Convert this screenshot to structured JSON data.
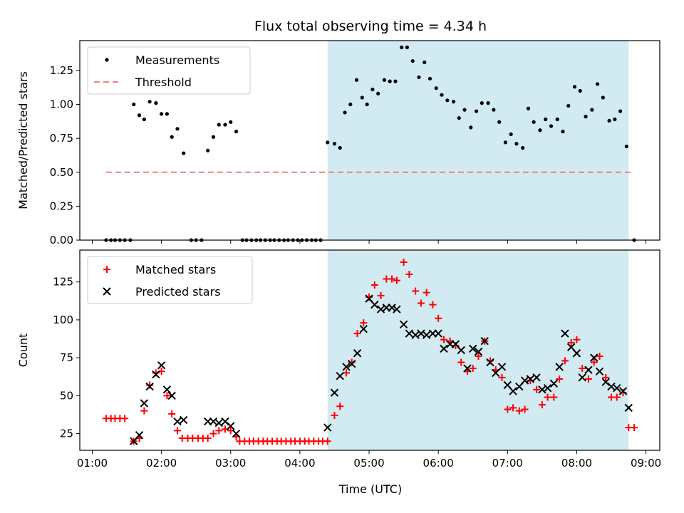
{
  "title": "Flux total observing time = 4.34 h",
  "xlabel": "Time (UTC)",
  "x_ticks": [
    "01:00",
    "02:00",
    "03:00",
    "04:00",
    "05:00",
    "06:00",
    "07:00",
    "08:00",
    "09:00"
  ],
  "x_tick_hours": [
    1,
    2,
    3,
    4,
    5,
    6,
    7,
    8,
    9
  ],
  "xlim_hours": [
    0.82,
    9.2
  ],
  "shaded_span_hours": [
    4.4,
    8.75
  ],
  "shade_color": "#d2eaf1",
  "chart_data": [
    {
      "type": "scatter",
      "ylabel": "Matched/Predicted stars",
      "ylim": [
        0,
        1.47
      ],
      "y_ticks": [
        0.0,
        0.25,
        0.5,
        0.75,
        1.0,
        1.25
      ],
      "y_tick_labels": [
        "0.00",
        "0.25",
        "0.50",
        "0.75",
        "1.00",
        "1.25"
      ],
      "legend_position": "upper-left",
      "series": [
        {
          "name": "Measurements",
          "marker": "dot",
          "color": "#000000",
          "points": [
            [
              1.2,
              0
            ],
            [
              1.27,
              0
            ],
            [
              1.33,
              0
            ],
            [
              1.4,
              0
            ],
            [
              1.47,
              0
            ],
            [
              1.55,
              0
            ],
            [
              1.6,
              1.0
            ],
            [
              1.68,
              0.92
            ],
            [
              1.75,
              0.89
            ],
            [
              1.83,
              1.02
            ],
            [
              1.92,
              1.01
            ],
            [
              2.0,
              0.93
            ],
            [
              2.08,
              0.93
            ],
            [
              2.15,
              0.76
            ],
            [
              2.23,
              0.82
            ],
            [
              2.32,
              0.64
            ],
            [
              2.43,
              0
            ],
            [
              2.5,
              0
            ],
            [
              2.58,
              0
            ],
            [
              2.67,
              0.66
            ],
            [
              2.75,
              0.76
            ],
            [
              2.83,
              0.85
            ],
            [
              2.92,
              0.85
            ],
            [
              3.0,
              0.87
            ],
            [
              3.08,
              0.8
            ],
            [
              3.17,
              0
            ],
            [
              3.23,
              0
            ],
            [
              3.3,
              0
            ],
            [
              3.37,
              0
            ],
            [
              3.43,
              0
            ],
            [
              3.5,
              0
            ],
            [
              3.57,
              0
            ],
            [
              3.63,
              0
            ],
            [
              3.7,
              0
            ],
            [
              3.77,
              0
            ],
            [
              3.83,
              0
            ],
            [
              3.9,
              0
            ],
            [
              3.97,
              0
            ],
            [
              4.03,
              0
            ],
            [
              4.1,
              0
            ],
            [
              4.17,
              0
            ],
            [
              4.23,
              0
            ],
            [
              4.3,
              0
            ],
            [
              4.4,
              0.72
            ],
            [
              4.5,
              0.71
            ],
            [
              4.58,
              0.68
            ],
            [
              4.65,
              0.94
            ],
            [
              4.73,
              1.0
            ],
            [
              4.82,
              1.18
            ],
            [
              4.9,
              1.05
            ],
            [
              4.97,
              1.0
            ],
            [
              5.05,
              1.11
            ],
            [
              5.13,
              1.08
            ],
            [
              5.22,
              1.18
            ],
            [
              5.3,
              1.17
            ],
            [
              5.38,
              1.17
            ],
            [
              5.47,
              1.42
            ],
            [
              5.55,
              1.42
            ],
            [
              5.63,
              1.32
            ],
            [
              5.72,
              1.2
            ],
            [
              5.8,
              1.31
            ],
            [
              5.88,
              1.19
            ],
            [
              5.97,
              1.12
            ],
            [
              6.05,
              1.07
            ],
            [
              6.13,
              1.03
            ],
            [
              6.22,
              1.02
            ],
            [
              6.3,
              0.9
            ],
            [
              6.38,
              0.96
            ],
            [
              6.47,
              0.83
            ],
            [
              6.55,
              0.95
            ],
            [
              6.63,
              1.01
            ],
            [
              6.72,
              1.01
            ],
            [
              6.8,
              0.96
            ],
            [
              6.88,
              0.87
            ],
            [
              6.97,
              0.72
            ],
            [
              7.05,
              0.78
            ],
            [
              7.13,
              0.71
            ],
            [
              7.22,
              0.68
            ],
            [
              7.3,
              0.97
            ],
            [
              7.38,
              0.87
            ],
            [
              7.47,
              0.81
            ],
            [
              7.55,
              0.89
            ],
            [
              7.63,
              0.84
            ],
            [
              7.72,
              0.89
            ],
            [
              7.8,
              0.8
            ],
            [
              7.88,
              0.99
            ],
            [
              7.97,
              1.13
            ],
            [
              8.05,
              1.1
            ],
            [
              8.13,
              0.91
            ],
            [
              8.22,
              0.96
            ],
            [
              8.3,
              1.15
            ],
            [
              8.38,
              1.05
            ],
            [
              8.47,
              0.88
            ],
            [
              8.55,
              0.89
            ],
            [
              8.63,
              0.95
            ],
            [
              8.72,
              0.69
            ],
            [
              8.83,
              0
            ]
          ]
        },
        {
          "name": "Threshold",
          "marker": "dashed-line",
          "color": "#f08080",
          "points": [
            [
              1.2,
              0.5
            ],
            [
              8.83,
              0.5
            ]
          ]
        }
      ]
    },
    {
      "type": "scatter",
      "ylabel": "Count",
      "ylim": [
        14,
        146
      ],
      "y_ticks": [
        25,
        50,
        75,
        100,
        125
      ],
      "y_tick_labels": [
        "25",
        "50",
        "75",
        "100",
        "125"
      ],
      "legend_position": "upper-left",
      "series": [
        {
          "name": "Matched stars",
          "marker": "plus",
          "color": "#ff0000",
          "points": [
            [
              1.2,
              35
            ],
            [
              1.27,
              35
            ],
            [
              1.33,
              35
            ],
            [
              1.4,
              35
            ],
            [
              1.47,
              35
            ],
            [
              1.6,
              20
            ],
            [
              1.68,
              22
            ],
            [
              1.75,
              40
            ],
            [
              1.83,
              57
            ],
            [
              1.92,
              65
            ],
            [
              2.0,
              66
            ],
            [
              2.08,
              50
            ],
            [
              2.15,
              38
            ],
            [
              2.23,
              27
            ],
            [
              2.3,
              22
            ],
            [
              2.38,
              22
            ],
            [
              2.45,
              22
            ],
            [
              2.53,
              22
            ],
            [
              2.6,
              22
            ],
            [
              2.67,
              22
            ],
            [
              2.75,
              25
            ],
            [
              2.83,
              27
            ],
            [
              2.92,
              28
            ],
            [
              3.0,
              27
            ],
            [
              3.08,
              23
            ],
            [
              3.13,
              20
            ],
            [
              3.2,
              20
            ],
            [
              3.27,
              20
            ],
            [
              3.33,
              20
            ],
            [
              3.4,
              20
            ],
            [
              3.47,
              20
            ],
            [
              3.53,
              20
            ],
            [
              3.6,
              20
            ],
            [
              3.67,
              20
            ],
            [
              3.73,
              20
            ],
            [
              3.8,
              20
            ],
            [
              3.87,
              20
            ],
            [
              3.93,
              20
            ],
            [
              4.0,
              20
            ],
            [
              4.07,
              20
            ],
            [
              4.13,
              20
            ],
            [
              4.2,
              20
            ],
            [
              4.27,
              20
            ],
            [
              4.33,
              20
            ],
            [
              4.4,
              20
            ],
            [
              4.5,
              37
            ],
            [
              4.58,
              43
            ],
            [
              4.67,
              65
            ],
            [
              4.75,
              72
            ],
            [
              4.83,
              91
            ],
            [
              4.92,
              98
            ],
            [
              5.0,
              115
            ],
            [
              5.08,
              123
            ],
            [
              5.17,
              116
            ],
            [
              5.25,
              127
            ],
            [
              5.33,
              127
            ],
            [
              5.4,
              126
            ],
            [
              5.5,
              138
            ],
            [
              5.58,
              130
            ],
            [
              5.67,
              119
            ],
            [
              5.75,
              111
            ],
            [
              5.83,
              118
            ],
            [
              5.92,
              110
            ],
            [
              6.0,
              101
            ],
            [
              6.08,
              87
            ],
            [
              6.17,
              86
            ],
            [
              6.25,
              83
            ],
            [
              6.33,
              72
            ],
            [
              6.42,
              66
            ],
            [
              6.5,
              68
            ],
            [
              6.58,
              76
            ],
            [
              6.67,
              86
            ],
            [
              6.75,
              73
            ],
            [
              6.83,
              67
            ],
            [
              6.92,
              62
            ],
            [
              7.0,
              41
            ],
            [
              7.08,
              42
            ],
            [
              7.17,
              40
            ],
            [
              7.25,
              41
            ],
            [
              7.33,
              60
            ],
            [
              7.42,
              54
            ],
            [
              7.5,
              44
            ],
            [
              7.58,
              49
            ],
            [
              7.67,
              49
            ],
            [
              7.75,
              61
            ],
            [
              7.83,
              73
            ],
            [
              7.92,
              85
            ],
            [
              8.0,
              87
            ],
            [
              8.08,
              68
            ],
            [
              8.17,
              61
            ],
            [
              8.25,
              72
            ],
            [
              8.33,
              76
            ],
            [
              8.42,
              62
            ],
            [
              8.5,
              49
            ],
            [
              8.58,
              49
            ],
            [
              8.67,
              52
            ],
            [
              8.75,
              29
            ],
            [
              8.83,
              29
            ]
          ]
        },
        {
          "name": "Predicted stars",
          "marker": "cross",
          "color": "#000000",
          "points": [
            [
              1.6,
              20
            ],
            [
              1.68,
              24
            ],
            [
              1.75,
              45
            ],
            [
              1.83,
              56
            ],
            [
              1.92,
              64
            ],
            [
              2.0,
              70
            ],
            [
              2.08,
              54
            ],
            [
              2.15,
              50
            ],
            [
              2.23,
              33
            ],
            [
              2.32,
              34
            ],
            [
              2.67,
              33
            ],
            [
              2.75,
              33
            ],
            [
              2.83,
              32
            ],
            [
              2.92,
              33
            ],
            [
              3.0,
              30
            ],
            [
              3.08,
              25
            ],
            [
              4.4,
              29
            ],
            [
              4.5,
              52
            ],
            [
              4.58,
              63
            ],
            [
              4.67,
              69
            ],
            [
              4.75,
              71
            ],
            [
              4.83,
              78
            ],
            [
              4.92,
              94
            ],
            [
              5.0,
              114
            ],
            [
              5.08,
              110
            ],
            [
              5.17,
              107
            ],
            [
              5.25,
              108
            ],
            [
              5.33,
              108
            ],
            [
              5.4,
              107
            ],
            [
              5.5,
              97
            ],
            [
              5.58,
              91
            ],
            [
              5.67,
              90
            ],
            [
              5.75,
              91
            ],
            [
              5.83,
              90
            ],
            [
              5.92,
              91
            ],
            [
              6.0,
              91
            ],
            [
              6.08,
              81
            ],
            [
              6.17,
              84
            ],
            [
              6.25,
              84
            ],
            [
              6.33,
              80
            ],
            [
              6.42,
              68
            ],
            [
              6.5,
              81
            ],
            [
              6.58,
              79
            ],
            [
              6.67,
              86
            ],
            [
              6.75,
              72
            ],
            [
              6.83,
              65
            ],
            [
              6.92,
              69
            ],
            [
              7.0,
              57
            ],
            [
              7.08,
              53
            ],
            [
              7.17,
              56
            ],
            [
              7.25,
              60
            ],
            [
              7.33,
              61
            ],
            [
              7.42,
              62
            ],
            [
              7.5,
              54
            ],
            [
              7.58,
              55
            ],
            [
              7.67,
              58
            ],
            [
              7.75,
              69
            ],
            [
              7.83,
              91
            ],
            [
              7.92,
              82
            ],
            [
              8.0,
              78
            ],
            [
              8.08,
              62
            ],
            [
              8.17,
              67
            ],
            [
              8.25,
              75
            ],
            [
              8.33,
              66
            ],
            [
              8.42,
              59
            ],
            [
              8.5,
              56
            ],
            [
              8.58,
              55
            ],
            [
              8.67,
              53
            ],
            [
              8.75,
              42
            ]
          ]
        }
      ]
    }
  ]
}
